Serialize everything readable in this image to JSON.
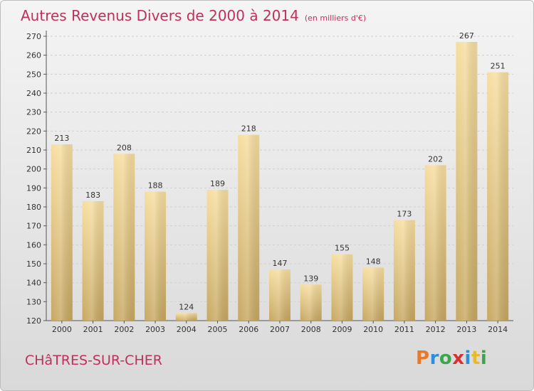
{
  "title": "Autres Revenus Divers de 2000 à 2014",
  "subtitle": "(en milliers d'€)",
  "city": "CHâTRES-SUR-CHER",
  "logo": {
    "letters": [
      "P",
      "r",
      "o",
      "x",
      "i",
      "t",
      "i"
    ],
    "colors": [
      "#e8792b",
      "#2f8fd6",
      "#3aa84a",
      "#d8312f",
      "#2f8fd6",
      "#e8b92b",
      "#3aa84a"
    ]
  },
  "colors": {
    "title": "#c0305a",
    "bar_light": "#f7dea0",
    "bar_dark": "#c7a862",
    "grid": "#cfcfcf"
  },
  "chart_data": {
    "type": "bar",
    "categories": [
      "2000",
      "2001",
      "2002",
      "2003",
      "2004",
      "2005",
      "2006",
      "2007",
      "2008",
      "2009",
      "2010",
      "2011",
      "2012",
      "2013",
      "2014"
    ],
    "values": [
      213,
      183,
      208,
      188,
      124,
      189,
      218,
      147,
      139,
      155,
      148,
      173,
      202,
      267,
      251
    ],
    "ylim": [
      120,
      270
    ],
    "yticks": [
      120,
      130,
      140,
      150,
      160,
      170,
      180,
      190,
      200,
      210,
      220,
      230,
      240,
      250,
      260,
      270
    ],
    "grid": true,
    "data_labels": true
  }
}
